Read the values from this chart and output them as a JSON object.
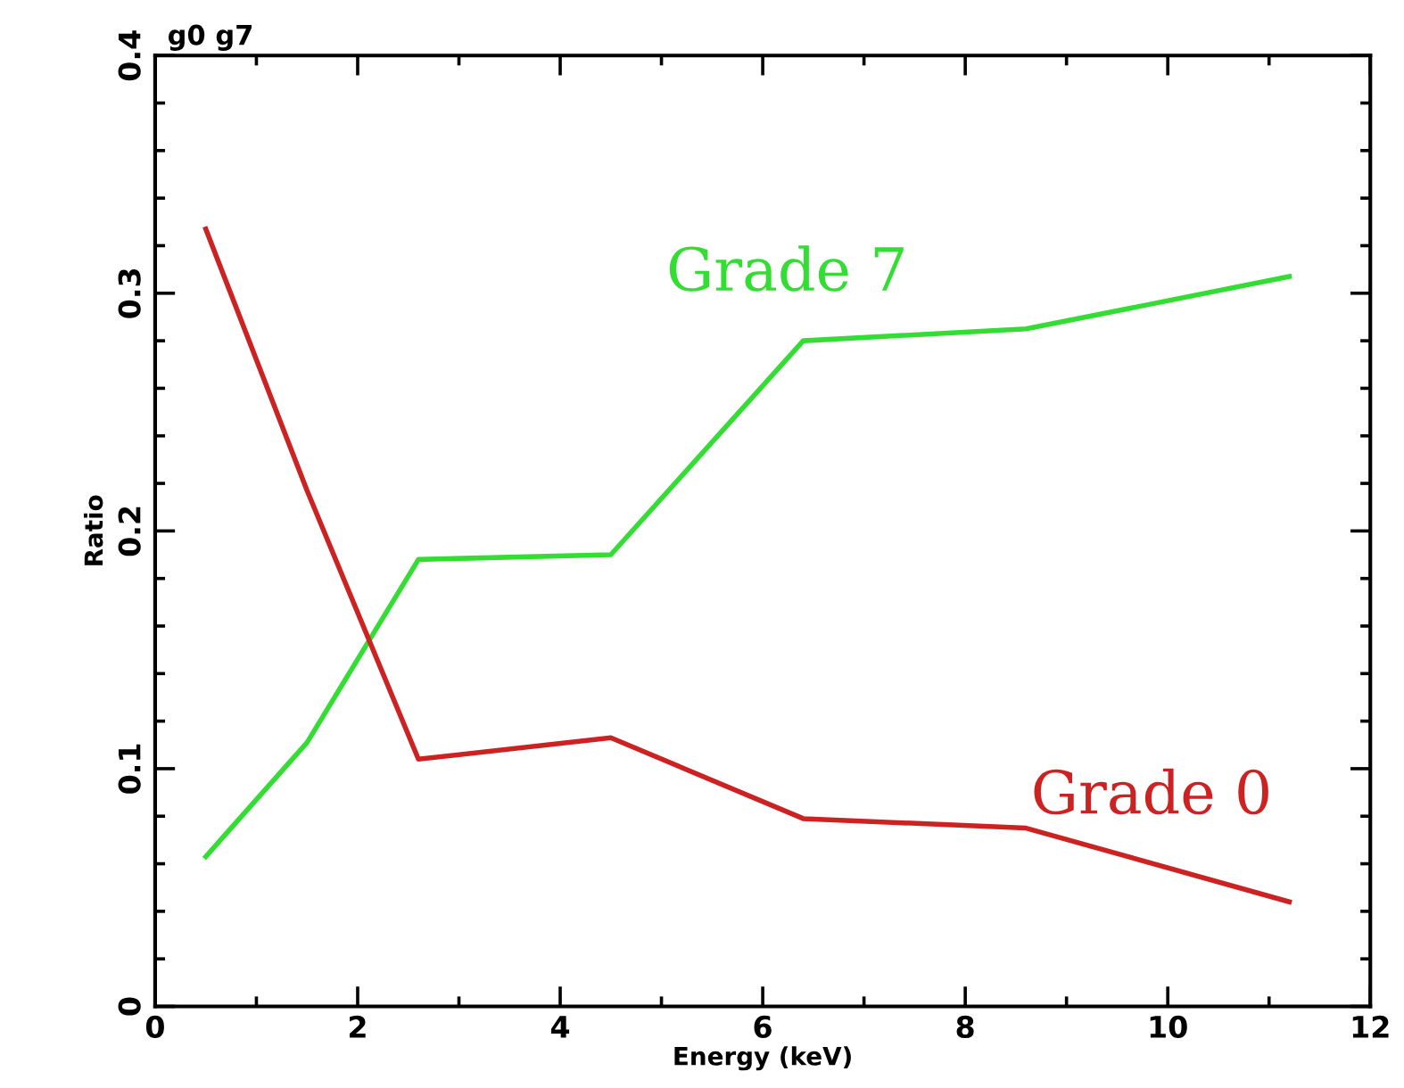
{
  "chart_data": {
    "type": "line",
    "xlabel": "Energy (keV)",
    "ylabel": "Ratio",
    "annotations": [
      "g0 g7"
    ],
    "x": [
      0.5,
      1.5,
      2.6,
      4.5,
      6.4,
      8.6,
      11.2
    ],
    "series": [
      {
        "name": "Grade 7",
        "color": "#33dd33",
        "values": [
          0.063,
          0.111,
          0.188,
          0.19,
          0.28,
          0.285,
          0.307
        ]
      },
      {
        "name": "Grade 0",
        "color": "#cc2222",
        "values": [
          0.327,
          0.217,
          0.104,
          0.113,
          0.079,
          0.075,
          0.044
        ]
      }
    ],
    "xlim": [
      0,
      12
    ],
    "xticks": [
      0,
      2,
      4,
      6,
      8,
      10,
      12
    ],
    "ylim": [
      0,
      0.4
    ],
    "yticks": [
      0,
      0.1,
      0.2,
      0.3,
      0.4
    ],
    "grid": false,
    "legend": false,
    "marker": "none",
    "line_style": "solid"
  }
}
